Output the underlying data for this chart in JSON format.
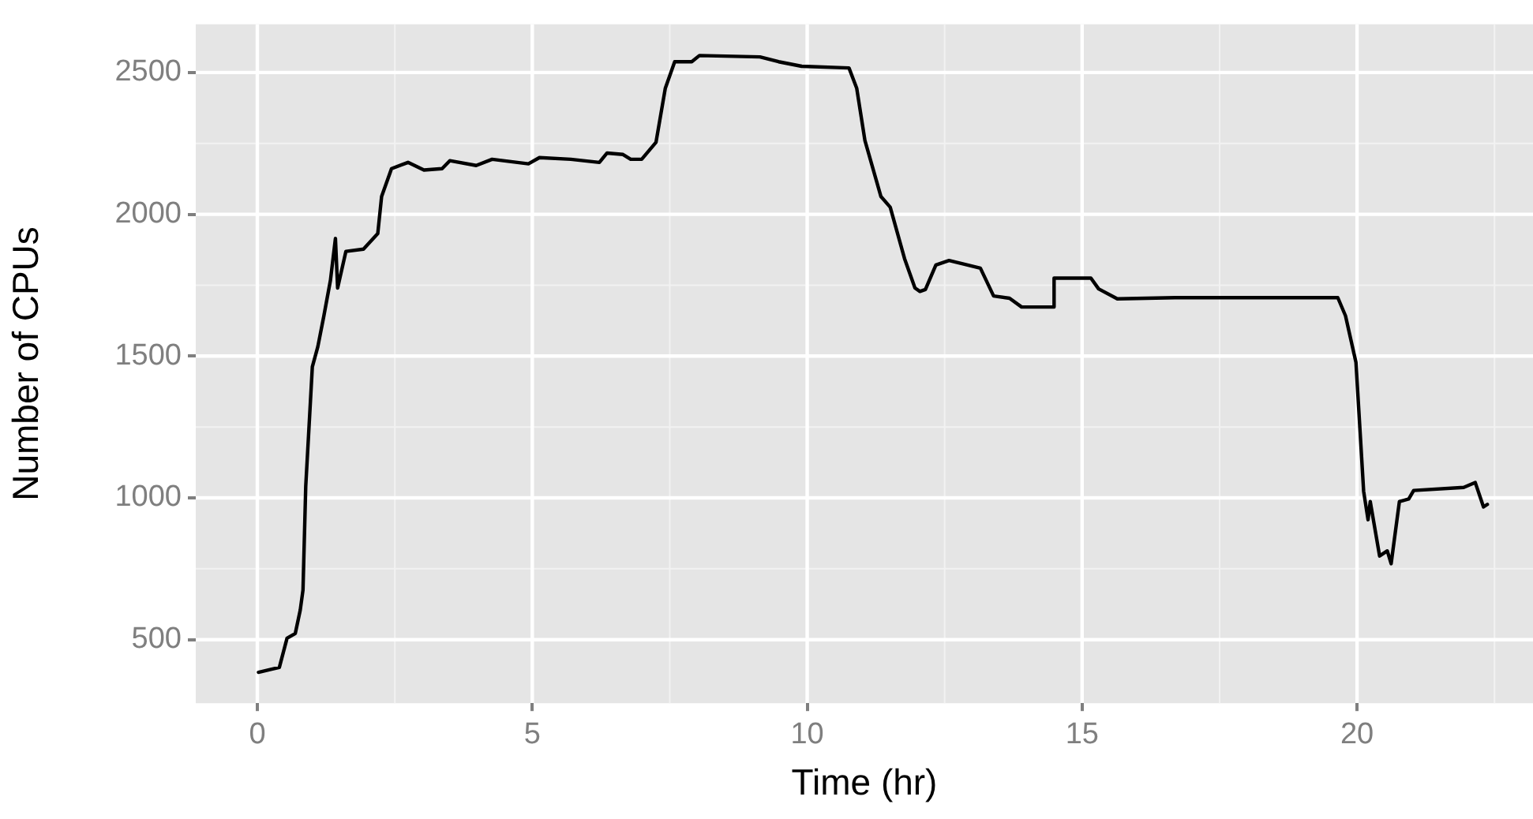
{
  "chart_data": {
    "type": "line",
    "xlabel": "Time (hr)",
    "ylabel": "Number of CPUs",
    "x": [
      0.02,
      0.26,
      0.4,
      0.54,
      0.69,
      0.78,
      0.83,
      0.88,
      1.0,
      1.1,
      1.21,
      1.33,
      1.42,
      1.46,
      1.61,
      1.93,
      2.19,
      2.26,
      2.44,
      2.74,
      3.03,
      3.36,
      3.5,
      3.98,
      4.27,
      4.93,
      5.13,
      5.7,
      6.22,
      6.36,
      6.65,
      6.79,
      6.99,
      7.25,
      7.42,
      7.59,
      7.9,
      8.04,
      9.14,
      9.48,
      9.9,
      10.76,
      10.9,
      11.05,
      11.34,
      11.51,
      11.77,
      11.96,
      12.05,
      12.15,
      12.34,
      12.58,
      13.15,
      13.39,
      13.68,
      13.9,
      14.49,
      14.49,
      15.16,
      15.3,
      15.64,
      16.69,
      18.6,
      19.65,
      19.79,
      19.98,
      20.12,
      20.2,
      20.24,
      20.41,
      20.55,
      20.62,
      20.77,
      20.94,
      21.03,
      21.94,
      22.15,
      22.3,
      22.37
    ],
    "series": [
      {
        "color": "#000000",
        "values": [
          385,
          396,
          402,
          505,
          522,
          604,
          675,
          1041,
          1462,
          1533,
          1642,
          1768,
          1915,
          1740,
          1869,
          1877,
          1932,
          2063,
          2161,
          2183,
          2156,
          2161,
          2189,
          2172,
          2194,
          2178,
          2200,
          2194,
          2183,
          2216,
          2211,
          2194,
          2194,
          2254,
          2445,
          2538,
          2538,
          2560,
          2555,
          2538,
          2522,
          2516,
          2445,
          2260,
          2063,
          2025,
          1844,
          1740,
          1728,
          1735,
          1821,
          1837,
          1810,
          1712,
          1704,
          1673,
          1673,
          1775,
          1775,
          1737,
          1702,
          1706,
          1706,
          1706,
          1642,
          1478,
          1023,
          923,
          987,
          795,
          813,
          768,
          987,
          996,
          1026,
          1037,
          1054,
          968,
          977
        ]
      }
    ],
    "xlim": [
      -1.12,
      23.2
    ],
    "ylim": [
      276,
      2670
    ],
    "xticks": [
      0,
      5,
      10,
      15,
      20
    ],
    "yticks": [
      500,
      1000,
      1500,
      2000,
      2500
    ],
    "grid": true,
    "legend": false,
    "marker": "none",
    "line_style": "solid"
  }
}
